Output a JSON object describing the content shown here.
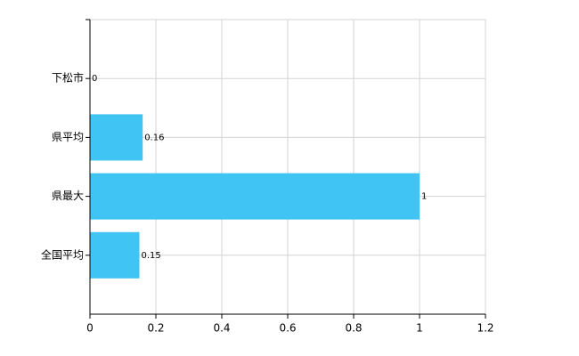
{
  "chart_data": {
    "type": "barh",
    "categories": [
      "下松市",
      "県平均",
      "県最大",
      "全国平均"
    ],
    "values": [
      0,
      0.16,
      1,
      0.15
    ],
    "color": "#3fc4f4",
    "xlim": [
      0,
      1.2
    ],
    "xticks": [
      0,
      0.2,
      0.4,
      0.6,
      0.8,
      1,
      1.2
    ],
    "grid": true
  }
}
